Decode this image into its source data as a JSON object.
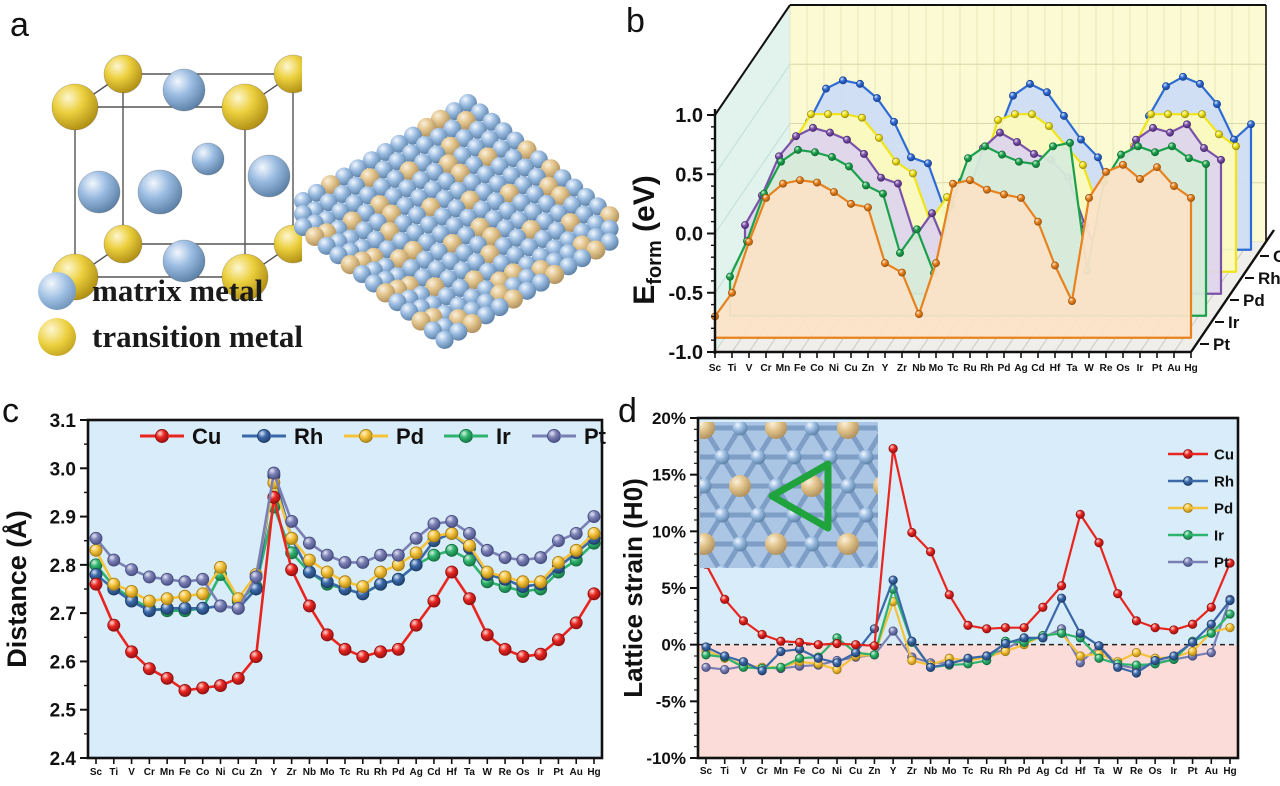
{
  "panels": {
    "a": "a",
    "b": "b",
    "c": "c",
    "d": "d"
  },
  "elements": [
    "Sc",
    "Ti",
    "V",
    "Cr",
    "Mn",
    "Fe",
    "Co",
    "Ni",
    "Cu",
    "Zn",
    "Y",
    "Zr",
    "Nb",
    "Mo",
    "Tc",
    "Ru",
    "Rh",
    "Pd",
    "Ag",
    "Cd",
    "Hf",
    "Ta",
    "W",
    "Re",
    "Os",
    "Ir",
    "Pt",
    "Au",
    "Hg"
  ],
  "panel_a": {
    "legend": [
      {
        "label": "matrix metal",
        "sphere": "blue"
      },
      {
        "label": "transition metal",
        "sphere": "yellow"
      }
    ]
  },
  "colors": {
    "line_palette": {
      "Cu": {
        "hi": "#ffd9d6",
        "main": "#e8251f",
        "dark": "#8f0f10"
      },
      "Rh": {
        "hi": "#d8e6f6",
        "main": "#3a68a8",
        "dark": "#1f3c68"
      },
      "Pd": {
        "hi": "#fdf0cd",
        "main": "#f5c33b",
        "dark": "#a87e12"
      },
      "Ir": {
        "hi": "#d8f3e3",
        "main": "#2eb46e",
        "dark": "#156f40"
      },
      "Pt": {
        "hi": "#e4e6f4",
        "main": "#7a80b4",
        "dark": "#454b7e"
      }
    },
    "waterfall_palette": {
      "Cu": {
        "line": "#2e6cd4",
        "fill": "#cdddf5",
        "dark": "#173f8f",
        "hi": "#dde9fb"
      },
      "Rh": {
        "line": "#f0e418",
        "fill": "#fcfabc",
        "dark": "#9c8e06",
        "hi": "#fdfbd8"
      },
      "Pd": {
        "line": "#7a52a8",
        "fill": "#ded5ec",
        "dark": "#46276e",
        "hi": "#e9e2f3"
      },
      "Ir": {
        "line": "#1ba14c",
        "fill": "#d7ecd9",
        "dark": "#0d6e31",
        "hi": "#d9f2e0"
      },
      "Pt": {
        "line": "#e8821e",
        "fill": "#fbe3c7",
        "dark": "#9e5208",
        "hi": "#fbe8d2"
      }
    },
    "backgrounds": {
      "panel_cd_blue": "#d9ecf9",
      "panel_d_pink": "#fbdcd8",
      "wall_left": "#e2f3ee",
      "wall_back": "#fbfad2",
      "floor": "#efeeea"
    },
    "sphere_blue": [
      "#f2f7fd",
      "#9cbde2",
      "#54799f"
    ],
    "sphere_yellow": [
      "#fdf6d2",
      "#ecd03e",
      "#a9870f"
    ],
    "sphere_tan": [
      "#faf0dc",
      "#e2c48c",
      "#a98a58"
    ],
    "inset_triangle": "#1fa33c",
    "inset_bond": "#7e9ec6",
    "inset_bg": "#aac6e4"
  },
  "chart_data": [
    {
      "id": "b",
      "type": "area",
      "projection": "3d-waterfall",
      "ylabel": "E_form (eV)",
      "ylabel_parts": [
        "E",
        "form",
        " (eV)"
      ],
      "ylim": [
        -1.0,
        1.0
      ],
      "yticks": [
        "1.0",
        "0.5",
        "0.0",
        "-0.5",
        "-1.0"
      ],
      "ytick_values": [
        1.0,
        0.5,
        0.0,
        -0.5,
        -1.0
      ],
      "depth_labels_top_to_bottom": [
        "Cu",
        "Rh",
        "Pd",
        "Ir",
        "Pt"
      ],
      "series": [
        {
          "name": "Cu",
          "depth": 4,
          "values": [
            -0.45,
            -0.15,
            0.2,
            0.48,
            0.55,
            0.52,
            0.4,
            0.2,
            -0.1,
            -0.15,
            -0.55,
            -0.3,
            -0.4,
            0.05,
            0.42,
            0.52,
            0.45,
            0.25,
            0.05,
            -0.1,
            -0.45,
            -0.35,
            0.25,
            0.5,
            0.58,
            0.52,
            0.35,
            0.05,
            0.18
          ]
        },
        {
          "name": "Rh",
          "depth": 3,
          "values": [
            -0.35,
            -0.1,
            0.22,
            0.45,
            0.45,
            0.45,
            0.42,
            0.25,
            0.05,
            -0.05,
            -0.45,
            -0.25,
            -0.58,
            -0.05,
            0.4,
            0.45,
            0.45,
            0.35,
            0.18,
            0.02,
            -0.38,
            -0.62,
            0.18,
            0.45,
            0.45,
            0.45,
            0.45,
            0.28,
            0.18
          ]
        },
        {
          "name": "Pd",
          "depth": 2,
          "values": [
            -0.3,
            -0.05,
            0.28,
            0.45,
            0.52,
            0.48,
            0.42,
            0.3,
            0.1,
            0.05,
            -0.4,
            -0.2,
            -0.55,
            -0.1,
            0.35,
            0.48,
            0.4,
            0.3,
            0.25,
            0.1,
            -0.3,
            -0.6,
            0.15,
            0.42,
            0.52,
            0.48,
            0.55,
            0.35,
            0.25
          ]
        },
        {
          "name": "Ir",
          "depth": 1,
          "values": [
            -0.55,
            -0.25,
            0.15,
            0.42,
            0.52,
            0.5,
            0.46,
            0.38,
            0.22,
            0.15,
            -0.35,
            -0.15,
            -0.52,
            0.05,
            0.45,
            0.55,
            0.48,
            0.42,
            0.4,
            0.55,
            0.58,
            -0.5,
            0.25,
            0.48,
            0.55,
            0.5,
            0.55,
            0.45,
            0.4
          ]
        },
        {
          "name": "Pt",
          "depth": 0,
          "values": [
            -0.7,
            -0.5,
            -0.07,
            0.3,
            0.42,
            0.45,
            0.43,
            0.35,
            0.25,
            0.22,
            -0.25,
            -0.33,
            -0.68,
            -0.25,
            0.42,
            0.45,
            0.37,
            0.33,
            0.3,
            0.1,
            -0.27,
            -0.57,
            0.3,
            0.52,
            0.58,
            0.46,
            0.56,
            0.4,
            0.3
          ]
        }
      ]
    },
    {
      "id": "c",
      "type": "line",
      "ylabel": "Distance (Å)",
      "ylim": [
        2.4,
        3.1
      ],
      "yticks": [
        "3.1",
        "3.0",
        "2.9",
        "2.8",
        "2.7",
        "2.6",
        "2.5",
        "2.4"
      ],
      "ytick_values": [
        3.1,
        3.0,
        2.9,
        2.8,
        2.7,
        2.6,
        2.5,
        2.4
      ],
      "legend_order": [
        "Cu",
        "Rh",
        "Pd",
        "Ir",
        "Pt"
      ],
      "draw_order": [
        "Ir",
        "Rh",
        "Pd",
        "Cu",
        "Pt"
      ],
      "series": [
        {
          "name": "Cu",
          "values": [
            2.76,
            2.675,
            2.62,
            2.585,
            2.565,
            2.54,
            2.545,
            2.55,
            2.565,
            2.61,
            2.94,
            2.79,
            2.715,
            2.655,
            2.625,
            2.61,
            2.62,
            2.625,
            2.675,
            2.725,
            2.785,
            2.73,
            2.655,
            2.625,
            2.61,
            2.615,
            2.645,
            2.68,
            2.74
          ]
        },
        {
          "name": "Rh",
          "values": [
            2.78,
            2.75,
            2.725,
            2.705,
            2.71,
            2.71,
            2.71,
            2.715,
            2.71,
            2.75,
            2.985,
            2.855,
            2.785,
            2.765,
            2.75,
            2.74,
            2.76,
            2.77,
            2.8,
            2.85,
            2.865,
            2.835,
            2.78,
            2.77,
            2.755,
            2.76,
            2.795,
            2.825,
            2.855
          ]
        },
        {
          "name": "Pd",
          "values": [
            2.83,
            2.76,
            2.745,
            2.725,
            2.73,
            2.735,
            2.74,
            2.795,
            2.73,
            2.78,
            2.97,
            2.855,
            2.81,
            2.785,
            2.765,
            2.755,
            2.785,
            2.8,
            2.825,
            2.86,
            2.865,
            2.84,
            2.785,
            2.775,
            2.765,
            2.765,
            2.805,
            2.83,
            2.865
          ]
        },
        {
          "name": "Ir",
          "values": [
            2.8,
            2.755,
            2.73,
            2.71,
            2.705,
            2.705,
            2.71,
            2.78,
            2.725,
            2.755,
            2.92,
            2.825,
            2.785,
            2.76,
            2.75,
            2.74,
            2.76,
            2.77,
            2.8,
            2.82,
            2.83,
            2.81,
            2.765,
            2.755,
            2.745,
            2.75,
            2.785,
            2.81,
            2.845
          ]
        },
        {
          "name": "Pt",
          "values": [
            2.855,
            2.81,
            2.79,
            2.775,
            2.77,
            2.765,
            2.77,
            2.715,
            2.71,
            2.775,
            2.99,
            2.89,
            2.845,
            2.82,
            2.805,
            2.805,
            2.82,
            2.82,
            2.855,
            2.885,
            2.89,
            2.865,
            2.83,
            2.815,
            2.81,
            2.815,
            2.85,
            2.865,
            2.9
          ]
        }
      ]
    },
    {
      "id": "d",
      "type": "line",
      "ylabel": "Lattice strain (H0)",
      "ylim": [
        -10,
        20
      ],
      "yticks": [
        "20%",
        "15%",
        "10%",
        "5%",
        "0%",
        "-5%",
        "-10%"
      ],
      "ytick_values": [
        20,
        15,
        10,
        5,
        0,
        -5,
        -10
      ],
      "zero_line": 0,
      "legend_order": [
        "Cu",
        "Rh",
        "Pd",
        "Ir",
        "Pt"
      ],
      "draw_order": [
        "Pt",
        "Pd",
        "Ir",
        "Rh",
        "Cu"
      ],
      "series": [
        {
          "name": "Cu",
          "values": [
            7.1,
            4.0,
            2.1,
            0.9,
            0.3,
            0.2,
            0.0,
            0.1,
            0.0,
            -0.1,
            17.3,
            9.9,
            8.2,
            4.4,
            1.7,
            1.4,
            1.5,
            1.5,
            3.3,
            5.2,
            11.5,
            9.0,
            4.5,
            2.1,
            1.5,
            1.3,
            1.8,
            3.3,
            7.2
          ]
        },
        {
          "name": "Rh",
          "values": [
            -0.2,
            -1.0,
            -1.5,
            -2.3,
            -0.6,
            -0.4,
            -1.2,
            -1.6,
            -0.7,
            1.4,
            5.7,
            0.3,
            -2.0,
            -1.7,
            -1.2,
            -1.0,
            0.1,
            0.6,
            0.6,
            4.1,
            1.0,
            -0.1,
            -2.0,
            -2.5,
            -1.4,
            -1.0,
            0.2,
            1.8,
            3.9
          ]
        },
        {
          "name": "Pd",
          "values": [
            -0.5,
            -1.2,
            -1.8,
            -2.0,
            -2.0,
            -1.5,
            -1.7,
            -2.2,
            -1.0,
            -0.9,
            3.8,
            -1.4,
            -1.8,
            -1.2,
            -1.4,
            -1.1,
            -0.6,
            0.0,
            0.8,
            1.0,
            -1.0,
            -0.8,
            -1.5,
            -0.7,
            -1.2,
            -1.1,
            -0.6,
            1.1,
            1.5
          ]
        },
        {
          "name": "Ir",
          "values": [
            -0.9,
            -1.1,
            -2.0,
            -2.1,
            -2.0,
            -1.2,
            -1.1,
            0.6,
            -0.7,
            -0.9,
            4.9,
            0.2,
            -2.0,
            -1.8,
            -1.7,
            -1.4,
            0.3,
            0.2,
            0.8,
            1.0,
            0.6,
            -1.2,
            -1.7,
            -1.8,
            -1.7,
            -1.3,
            0.3,
            1.0,
            2.7
          ]
        },
        {
          "name": "Pt",
          "values": [
            -2.0,
            -2.2,
            -1.9,
            -2.0,
            -2.1,
            -1.9,
            -1.8,
            -1.4,
            -1.1,
            -0.9,
            1.2,
            -1.1,
            -1.6,
            -1.6,
            -1.3,
            -1.0,
            -0.4,
            0.5,
            0.6,
            1.4,
            -1.6,
            -0.1,
            -1.8,
            -2.1,
            -1.6,
            -1.3,
            -1.0,
            -0.7,
            4.0
          ]
        }
      ]
    }
  ]
}
